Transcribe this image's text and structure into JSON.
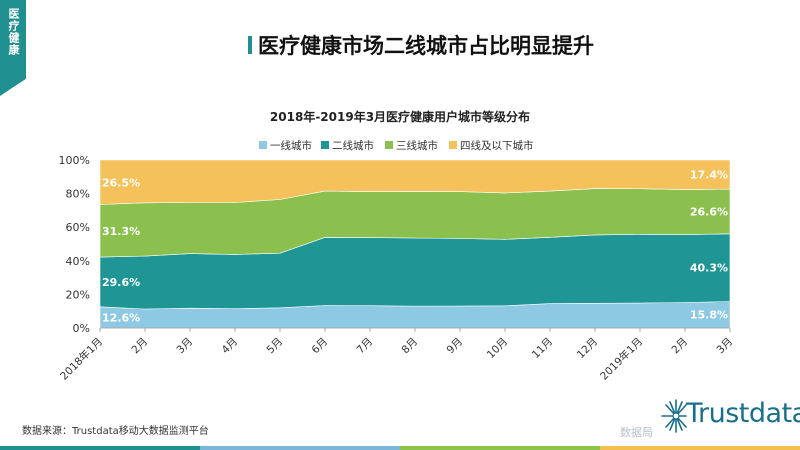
{
  "corner_tab": {
    "label": "医疗健康"
  },
  "page_title": "医疗健康市场二线城市占比明显提升",
  "source": "数据来源：Trustdata移动大数据监测平台",
  "watermark": "数据局",
  "logo": {
    "text": "Trustdata",
    "icon": "sunburst-logo-icon",
    "color": "#1a6f8a"
  },
  "bottom_strip_colors": [
    "#1f8f8f",
    "#7bb6d8",
    "#8cc34a",
    "#f3c04f"
  ],
  "chart_data": {
    "type": "area",
    "stacked": true,
    "percent": true,
    "title": "2018年-2019年3月医疗健康用户城市等级分布",
    "categories": [
      "2018年1月",
      "2月",
      "3月",
      "4月",
      "5月",
      "6月",
      "7月",
      "8月",
      "9月",
      "10月",
      "11月",
      "12月",
      "2019年1月",
      "2月",
      "3月"
    ],
    "ylim": [
      0,
      100
    ],
    "yticks": [
      "0%",
      "20%",
      "40%",
      "60%",
      "80%",
      "100%"
    ],
    "legend_position": "top",
    "grid": false,
    "series": [
      {
        "name": "一线城市",
        "color": "#8ec9e4",
        "values": [
          12.6,
          11.3,
          11.8,
          11.5,
          12.0,
          13.4,
          13.3,
          13.0,
          13.1,
          13.2,
          14.5,
          14.7,
          14.9,
          15.2,
          15.8
        ]
      },
      {
        "name": "二线城市",
        "color": "#1f9595",
        "values": [
          29.6,
          31.5,
          32.5,
          32.3,
          32.5,
          40.6,
          40.5,
          40.6,
          40.2,
          39.6,
          39.5,
          40.7,
          40.9,
          40.4,
          40.3
        ]
      },
      {
        "name": "三线城市",
        "color": "#8bc04f",
        "values": [
          31.3,
          31.7,
          30.4,
          30.9,
          32.0,
          27.5,
          27.4,
          27.7,
          27.9,
          27.6,
          27.5,
          27.6,
          27.1,
          26.8,
          26.6
        ]
      },
      {
        "name": "四线及以下城市",
        "color": "#f5c15a",
        "values": [
          26.5,
          25.5,
          25.3,
          25.3,
          23.5,
          18.5,
          18.8,
          18.7,
          18.8,
          19.6,
          18.5,
          17.0,
          17.1,
          17.6,
          17.4
        ]
      }
    ],
    "data_labels": [
      {
        "series": 0,
        "index": 0,
        "text": "12.6%"
      },
      {
        "series": 1,
        "index": 0,
        "text": "29.6%"
      },
      {
        "series": 2,
        "index": 0,
        "text": "31.3%"
      },
      {
        "series": 3,
        "index": 0,
        "text": "26.5%"
      },
      {
        "series": 0,
        "index": 14,
        "text": "15.8%"
      },
      {
        "series": 1,
        "index": 14,
        "text": "40.3%"
      },
      {
        "series": 2,
        "index": 14,
        "text": "26.6%"
      },
      {
        "series": 3,
        "index": 14,
        "text": "17.4%"
      }
    ]
  }
}
